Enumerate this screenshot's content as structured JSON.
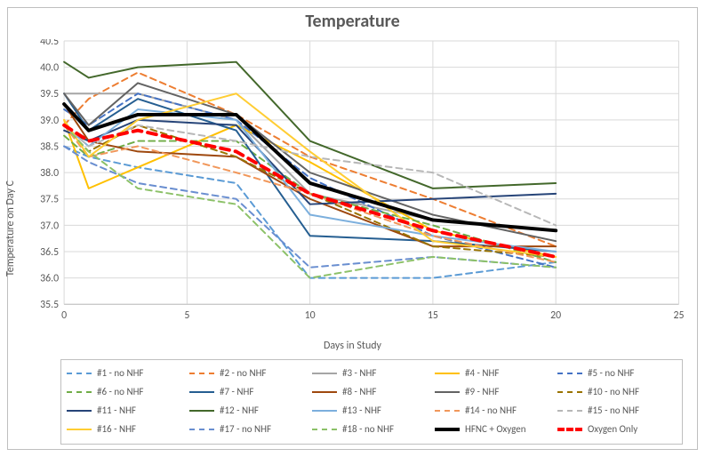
{
  "chart": {
    "type": "line",
    "title": "Temperature",
    "title_fontsize": 20,
    "xlabel": "Days in Study",
    "ylabel": "Temperature on Day C",
    "label_fontsize": 12,
    "xlim": [
      0,
      25
    ],
    "ylim": [
      35.5,
      40.5
    ],
    "xtick_step": 5,
    "ytick_step": 0.5,
    "xticks": [
      0,
      5,
      10,
      15,
      20,
      25
    ],
    "yticks": [
      35.5,
      36.0,
      36.5,
      37.0,
      37.5,
      38.0,
      38.5,
      39.0,
      39.5,
      40.0,
      40.5
    ],
    "background_color": "#ffffff",
    "grid_color": "#d9d9d9",
    "plot_border_color": "#bfbfbf",
    "axis_fontsize": 12,
    "legend_position": "bottom",
    "legend_columns": 5,
    "series": [
      {
        "label": "#1 - no NHF",
        "color": "#5b9bd5",
        "dash": "dash",
        "width": 2,
        "x": [
          0,
          1,
          3,
          7,
          10,
          15,
          20
        ],
        "y": [
          38.5,
          38.3,
          38.1,
          37.8,
          36.0,
          36.0,
          36.3
        ]
      },
      {
        "label": "#2 - no NHF",
        "color": "#ed7d31",
        "dash": "dash",
        "width": 2,
        "x": [
          0,
          1,
          3,
          7,
          10,
          15,
          20
        ],
        "y": [
          38.9,
          39.4,
          39.9,
          39.1,
          38.3,
          37.5,
          36.6
        ]
      },
      {
        "label": "#3 - NHF",
        "color": "#a5a5a5",
        "dash": "solid",
        "width": 2,
        "x": [
          0,
          1,
          3,
          7,
          10,
          15,
          20
        ],
        "y": [
          39.5,
          39.5,
          39.5,
          39.0,
          37.6,
          37.1,
          36.9
        ]
      },
      {
        "label": "#4 - NHF",
        "color": "#ffc000",
        "dash": "solid",
        "width": 2,
        "x": [
          0,
          1,
          3,
          7,
          10,
          15,
          20
        ],
        "y": [
          39.0,
          37.7,
          38.1,
          38.9,
          38.2,
          36.9,
          36.4
        ]
      },
      {
        "label": "#5 - no NHF",
        "color": "#4472c4",
        "dash": "dash",
        "width": 2,
        "x": [
          0,
          1,
          3,
          7,
          10,
          15,
          20
        ],
        "y": [
          39.2,
          38.9,
          39.5,
          39.0,
          37.9,
          36.8,
          36.2
        ]
      },
      {
        "label": "#6 - no NHF",
        "color": "#70ad47",
        "dash": "dash",
        "width": 2,
        "x": [
          0,
          1,
          3,
          7,
          10,
          15,
          20
        ],
        "y": [
          38.7,
          38.3,
          38.6,
          38.6,
          37.6,
          37.0,
          36.3
        ]
      },
      {
        "label": "#7 - NHF",
        "color": "#255e91",
        "dash": "solid",
        "width": 2,
        "x": [
          0,
          1,
          3,
          7,
          10,
          15,
          20
        ],
        "y": [
          39.5,
          38.8,
          39.4,
          38.8,
          36.8,
          36.7,
          36.5
        ]
      },
      {
        "label": "#8 - NHF",
        "color": "#9e480e",
        "dash": "solid",
        "width": 2,
        "x": [
          0,
          1,
          3,
          7,
          10,
          15,
          20
        ],
        "y": [
          39.3,
          38.6,
          38.4,
          38.3,
          37.5,
          36.6,
          36.6
        ]
      },
      {
        "label": "#9 - NHF",
        "color": "#636363",
        "dash": "solid",
        "width": 2,
        "x": [
          0,
          1,
          3,
          7,
          10,
          15,
          20
        ],
        "y": [
          39.5,
          38.9,
          39.7,
          39.1,
          38.0,
          37.2,
          36.7
        ]
      },
      {
        "label": "#10 - no NHF",
        "color": "#997300",
        "dash": "dash",
        "width": 2,
        "x": [
          0,
          1,
          3,
          7,
          10,
          15,
          20
        ],
        "y": [
          38.9,
          38.4,
          38.9,
          38.3,
          37.6,
          36.6,
          36.4
        ]
      },
      {
        "label": "#11 - NHF",
        "color": "#264478",
        "dash": "solid",
        "width": 2,
        "x": [
          0,
          1,
          3,
          7,
          10,
          15,
          20
        ],
        "y": [
          38.8,
          38.6,
          39.0,
          38.9,
          37.4,
          37.5,
          37.6
        ]
      },
      {
        "label": "#12 - NHF",
        "color": "#43682b",
        "dash": "solid",
        "width": 2,
        "x": [
          0,
          1,
          3,
          7,
          10,
          15,
          20
        ],
        "y": [
          40.1,
          39.8,
          40.0,
          40.1,
          38.6,
          37.7,
          37.8
        ]
      },
      {
        "label": "#13 - NHF",
        "color": "#7cafdd",
        "dash": "solid",
        "width": 2,
        "x": [
          0,
          1,
          3,
          7,
          10,
          15,
          20
        ],
        "y": [
          38.9,
          38.5,
          39.2,
          39.0,
          37.2,
          36.8,
          36.5
        ]
      },
      {
        "label": "#14 - no NHF",
        "color": "#f1975a",
        "dash": "dash",
        "width": 2,
        "x": [
          0,
          1,
          3,
          7,
          10,
          15,
          20
        ],
        "y": [
          38.9,
          38.3,
          38.5,
          38.0,
          37.6,
          36.8,
          36.3
        ]
      },
      {
        "label": "#15 - no NHF",
        "color": "#b7b7b7",
        "dash": "dash",
        "width": 2,
        "x": [
          0,
          1,
          3,
          7,
          10,
          15,
          20
        ],
        "y": [
          38.9,
          38.5,
          38.9,
          38.6,
          38.3,
          38.0,
          37.0
        ]
      },
      {
        "label": "#16 - NHF",
        "color": "#ffcd33",
        "dash": "solid",
        "width": 2,
        "x": [
          0,
          1,
          3,
          7,
          10,
          15,
          20
        ],
        "y": [
          39.0,
          38.3,
          39.0,
          39.5,
          38.4,
          36.7,
          36.4
        ]
      },
      {
        "label": "#17 - no NHF",
        "color": "#698ed0",
        "dash": "dash",
        "width": 2,
        "x": [
          0,
          1,
          3,
          7,
          10,
          15,
          20
        ],
        "y": [
          38.5,
          38.2,
          37.8,
          37.5,
          36.2,
          36.4,
          36.2
        ]
      },
      {
        "label": "#18 - no NHF",
        "color": "#8cc168",
        "dash": "dash",
        "width": 2,
        "x": [
          0,
          1,
          3,
          7,
          10,
          15,
          20
        ],
        "y": [
          38.9,
          38.4,
          37.7,
          37.4,
          36.0,
          36.4,
          36.2
        ]
      },
      {
        "label": "HFNC + Oxygen",
        "color": "#000000",
        "dash": "solid",
        "width": 4,
        "x": [
          0,
          1,
          3,
          7,
          10,
          15,
          20
        ],
        "y": [
          39.3,
          38.8,
          39.1,
          39.1,
          37.8,
          37.1,
          36.9
        ]
      },
      {
        "label": "Oxygen Only",
        "color": "#ff0000",
        "dash": "dash",
        "width": 4,
        "x": [
          0,
          1,
          3,
          7,
          10,
          15,
          20
        ],
        "y": [
          38.9,
          38.6,
          38.8,
          38.4,
          37.6,
          36.9,
          36.4
        ]
      }
    ]
  }
}
